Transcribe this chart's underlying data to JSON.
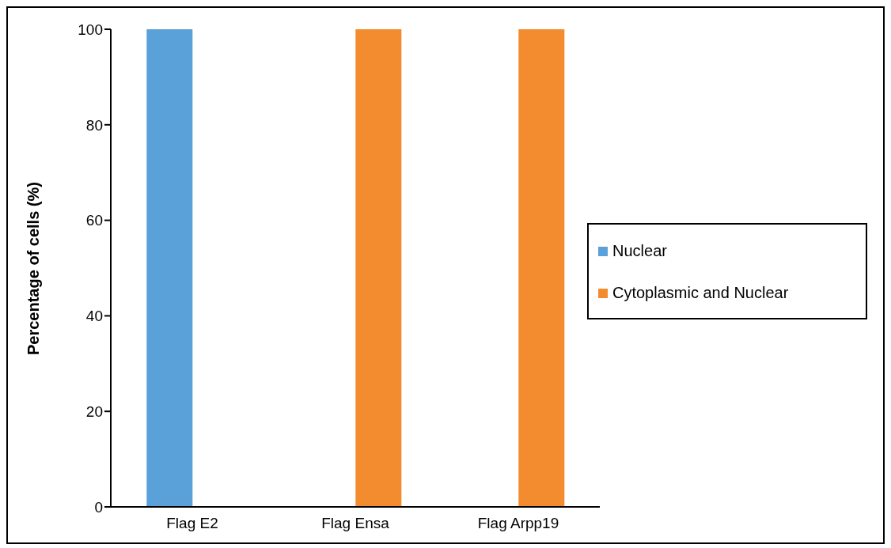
{
  "chart_data": {
    "type": "bar",
    "categories": [
      "Flag E2",
      "Flag Ensa",
      "Flag Arpp19"
    ],
    "series": [
      {
        "name": "Nuclear",
        "color": "#5aa0d9",
        "values": [
          100,
          0,
          0
        ]
      },
      {
        "name": "Cytoplasmic and Nuclear",
        "color": "#f28c2e",
        "values": [
          0,
          100,
          100
        ]
      }
    ],
    "ylabel": "Percentage of cells (%)",
    "ylim": [
      0,
      100
    ],
    "yticks": [
      0,
      20,
      40,
      60,
      80,
      100
    ],
    "grid": false,
    "legend": "right"
  }
}
